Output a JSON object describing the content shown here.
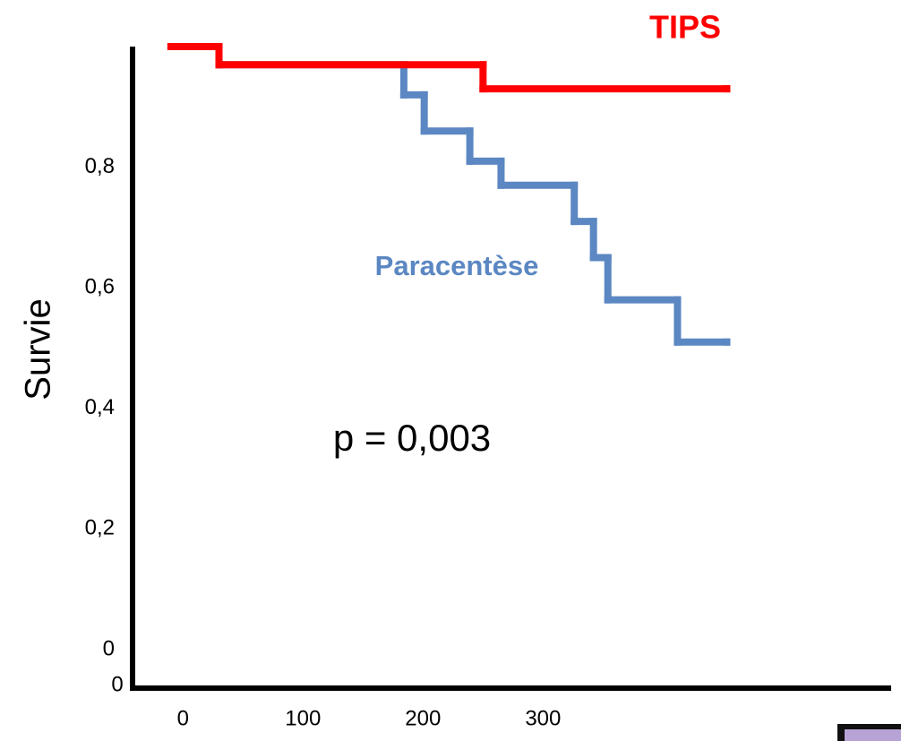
{
  "chart_data": {
    "type": "step",
    "y_label": "Survie",
    "x": [],
    "series": [
      {
        "name": "TIPS",
        "color": "#ff0000",
        "x": [
          -10,
          30,
          250,
          453
        ],
        "values": [
          1.0,
          0.97,
          0.93,
          0.93
        ]
      },
      {
        "name": "Paracentèse",
        "color": "#5b87c2",
        "x": [
          -10,
          30,
          184,
          201,
          239,
          265,
          326,
          342,
          354,
          412,
          453
        ],
        "values": [
          1.0,
          0.97,
          0.92,
          0.86,
          0.81,
          0.77,
          0.71,
          0.65,
          0.58,
          0.51,
          0.51
        ]
      }
    ],
    "xlim": [
      -42,
      590
    ],
    "xticks": [
      0,
      100,
      200,
      300
    ],
    "ylim": [
      -0.064,
      1.0
    ],
    "yticks": [
      0,
      {
        "value": 0.2,
        "label": "0,2"
      },
      {
        "value": 0.4,
        "label": "0,4"
      },
      {
        "value": 0.6,
        "label": "0,6"
      },
      {
        "value": 0.8,
        "label": "0,8"
      }
    ],
    "annotations": [
      {
        "text": "p = 0,003"
      },
      {
        "text": "0"
      }
    ]
  }
}
